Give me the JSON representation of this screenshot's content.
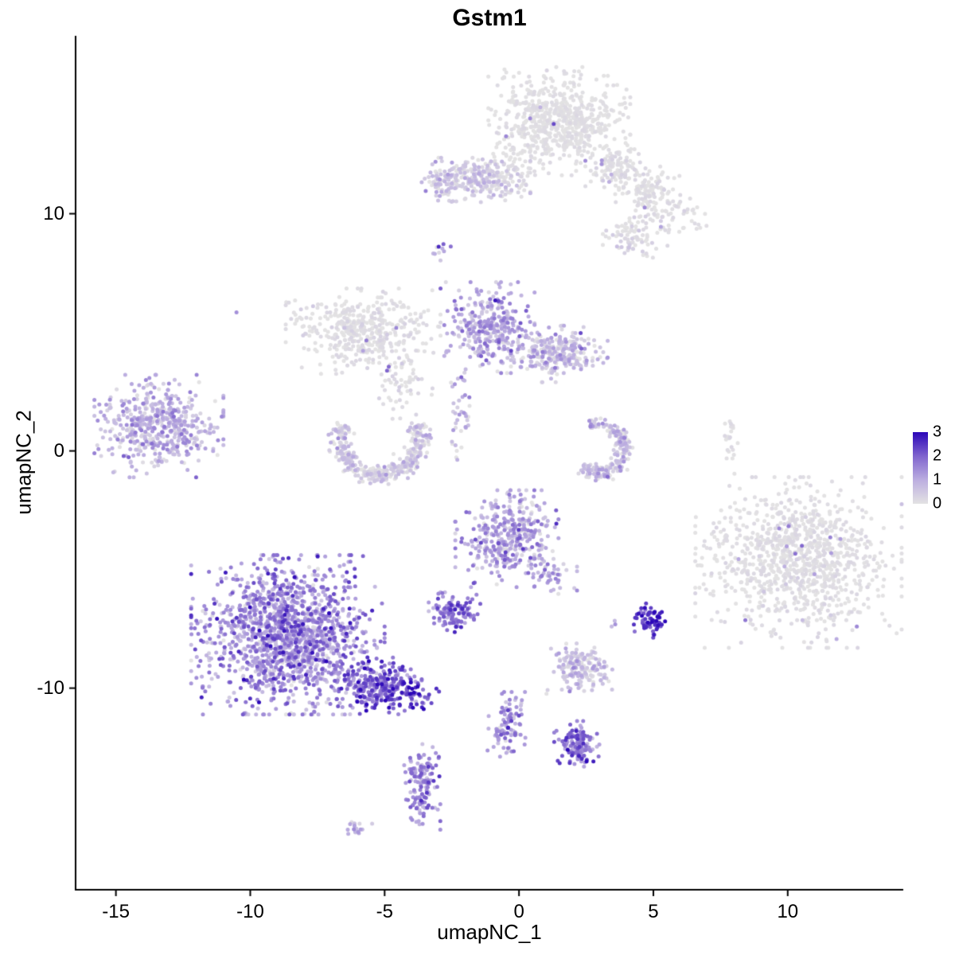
{
  "chart_data": {
    "type": "scatter",
    "title": "Gstm1",
    "xlabel": "umapNC_1",
    "ylabel": "umapNC_2",
    "xlim": [
      -16.5,
      14.3
    ],
    "ylim": [
      -18.5,
      17.5
    ],
    "xticks": [
      -15,
      -10,
      -5,
      0,
      5,
      10
    ],
    "yticks": [
      -10,
      0,
      10
    ],
    "grid": false,
    "point_radius": 2.5,
    "colors": {
      "axis": "#000000",
      "text": "#000000",
      "background": "#FFFFFF"
    },
    "gradient": [
      {
        "t": 0.0,
        "color": "#E3E2E3"
      },
      {
        "t": 0.33,
        "color": "#BCAEE0"
      },
      {
        "t": 0.66,
        "color": "#8166CE"
      },
      {
        "t": 1.0,
        "color": "#2B06B8"
      }
    ],
    "legend": {
      "values": [
        3,
        2,
        1,
        0
      ],
      "max": 3,
      "position": "right"
    },
    "clusters": [
      {
        "name": "top-main-gray",
        "cx": 1.5,
        "cy": 13.9,
        "rx": 1.1,
        "ry": 0.95,
        "n": 650,
        "expr_mean": 0.03,
        "expr_sd": 0.08,
        "out_frac": 0.012,
        "out_mean": 1.2,
        "out_sd": 0.5
      },
      {
        "name": "top-main-west",
        "cx": -0.3,
        "cy": 11.9,
        "rx": 0.5,
        "ry": 0.6,
        "n": 60,
        "expr_mean": 0.05,
        "expr_sd": 0.1
      },
      {
        "name": "top-right-a",
        "cx": 3.55,
        "cy": 11.9,
        "rx": 0.45,
        "ry": 0.45,
        "n": 110,
        "expr_mean": 0.06,
        "expr_sd": 0.12,
        "out_frac": 0.05,
        "out_mean": 0.9,
        "out_sd": 0.3
      },
      {
        "name": "top-right-b",
        "cx": 4.8,
        "cy": 11.0,
        "rx": 0.5,
        "ry": 0.5,
        "n": 110,
        "expr_mean": 0.06,
        "expr_sd": 0.12,
        "out_frac": 0.02,
        "out_mean": 1.2,
        "out_sd": 0.4
      },
      {
        "name": "top-right-c",
        "cx": 4.2,
        "cy": 9.05,
        "rx": 0.45,
        "ry": 0.4,
        "n": 80,
        "expr_mean": 0.1,
        "expr_sd": 0.2,
        "out_frac": 0.04,
        "out_mean": 1.5,
        "out_sd": 0.5
      },
      {
        "name": "top-right-d",
        "cx": 5.85,
        "cy": 9.85,
        "rx": 0.6,
        "ry": 0.5,
        "n": 50,
        "expr_mean": 0.05,
        "expr_sd": 0.1
      },
      {
        "name": "upper-mid",
        "cx": -1.5,
        "cy": 11.4,
        "rx": 0.8,
        "ry": 0.4,
        "n": 230,
        "expr_mean": 0.35,
        "expr_sd": 0.35
      },
      {
        "name": "upper-mid-west",
        "cx": -3.0,
        "cy": 11.4,
        "rx": 0.35,
        "ry": 0.4,
        "n": 50,
        "expr_mean": 0.5,
        "expr_sd": 0.45
      },
      {
        "name": "tiny-upper",
        "cx": -2.9,
        "cy": 8.5,
        "rx": 0.15,
        "ry": 0.2,
        "n": 10,
        "expr_mean": 1.1,
        "expr_sd": 0.5
      },
      {
        "name": "mid-gray",
        "cx": -5.8,
        "cy": 5.05,
        "rx": 1.2,
        "ry": 0.75,
        "n": 420,
        "expr_mean": 0.06,
        "expr_sd": 0.12,
        "out_frac": 0.015,
        "out_mean": 1.3,
        "out_sd": 0.5
      },
      {
        "name": "mid-gray-tail",
        "cx": -4.3,
        "cy": 2.85,
        "rx": 0.45,
        "ry": 0.7,
        "n": 60,
        "expr_mean": 0.1,
        "expr_sd": 0.2
      },
      {
        "name": "mid-purple",
        "cx": -1.1,
        "cy": 5.2,
        "rx": 0.7,
        "ry": 0.8,
        "n": 330,
        "expr_mean": 1.0,
        "expr_sd": 0.55
      },
      {
        "name": "mid-purple-east",
        "cx": 1.5,
        "cy": 4.1,
        "rx": 0.75,
        "ry": 0.5,
        "n": 260,
        "expr_mean": 0.55,
        "expr_sd": 0.5
      },
      {
        "name": "left-cluster",
        "cx": -13.4,
        "cy": 1.05,
        "rx": 1.0,
        "ry": 0.9,
        "n": 500,
        "expr_mean": 0.8,
        "expr_sd": 0.5
      },
      {
        "name": "crescent-left",
        "shape": "arc",
        "cx": -5.15,
        "cy": 0.5,
        "r": 1.5,
        "band": 0.35,
        "a0": 155,
        "a1": 385,
        "n": 380,
        "expr_mean": 0.35,
        "expr_sd": 0.4
      },
      {
        "name": "strand-mid",
        "cx": -2.2,
        "cy": 1.6,
        "rx": 0.2,
        "ry": 1.0,
        "n": 40,
        "expr_mean": 0.6,
        "expr_sd": 0.6
      },
      {
        "name": "crescent-right",
        "shape": "arc",
        "cx": 2.9,
        "cy": 0.1,
        "r": 1.05,
        "band": 0.3,
        "a0": -125,
        "a1": 105,
        "n": 210,
        "expr_mean": 0.5,
        "expr_sd": 0.5
      },
      {
        "name": "strand-right",
        "cx": 7.9,
        "cy": 0.3,
        "rx": 0.1,
        "ry": 0.75,
        "n": 22,
        "expr_mean": 0.05,
        "expr_sd": 0.1
      },
      {
        "name": "right-large-gray",
        "cx": 10.4,
        "cy": -4.7,
        "rx": 1.6,
        "ry": 1.5,
        "n": 1000,
        "expr_mean": 0.05,
        "expr_sd": 0.1,
        "out_frac": 0.02,
        "out_mean": 1.3,
        "out_sd": 0.6
      },
      {
        "name": "center-purple",
        "cx": -0.45,
        "cy": -3.7,
        "rx": 0.8,
        "ry": 0.85,
        "n": 380,
        "expr_mean": 1.0,
        "expr_sd": 0.55
      },
      {
        "name": "center-small-east",
        "cx": 1.2,
        "cy": -5.25,
        "rx": 0.4,
        "ry": 0.4,
        "n": 40,
        "expr_mean": 0.9,
        "expr_sd": 0.5
      },
      {
        "name": "center-dense",
        "cx": -2.4,
        "cy": -6.8,
        "rx": 0.4,
        "ry": 0.35,
        "n": 120,
        "expr_mean": 1.6,
        "expr_sd": 0.5
      },
      {
        "name": "bottom-left-main",
        "cx": -8.6,
        "cy": -7.75,
        "rx": 1.5,
        "ry": 1.4,
        "n": 1500,
        "expr_mean": 1.3,
        "expr_sd": 0.65
      },
      {
        "name": "bottom-left-tail",
        "cx": -5.3,
        "cy": -9.9,
        "rx": 0.7,
        "ry": 0.5,
        "n": 260,
        "expr_mean": 1.9,
        "expr_sd": 0.6
      },
      {
        "name": "tail-tip",
        "cx": -4.1,
        "cy": -10.25,
        "rx": 0.5,
        "ry": 0.35,
        "n": 60,
        "expr_mean": 2.3,
        "expr_sd": 0.5
      },
      {
        "name": "bottom-mid",
        "cx": 2.3,
        "cy": -9.2,
        "rx": 0.55,
        "ry": 0.45,
        "n": 170,
        "expr_mean": 0.5,
        "expr_sd": 0.45
      },
      {
        "name": "dark-small",
        "cx": 4.9,
        "cy": -7.15,
        "rx": 0.3,
        "ry": 0.3,
        "n": 65,
        "expr_mean": 2.5,
        "expr_sd": 0.45
      },
      {
        "name": "strand-bottom",
        "cx": -0.45,
        "cy": -11.6,
        "rx": 0.3,
        "ry": 0.6,
        "n": 95,
        "expr_mean": 1.1,
        "expr_sd": 0.6
      },
      {
        "name": "bottom-small-east",
        "cx": 2.15,
        "cy": -12.35,
        "rx": 0.35,
        "ry": 0.4,
        "n": 140,
        "expr_mean": 1.5,
        "expr_sd": 0.6
      },
      {
        "name": "bottom-strand",
        "cx": -3.6,
        "cy": -14.1,
        "rx": 0.28,
        "ry": 0.8,
        "n": 150,
        "expr_mean": 1.4,
        "expr_sd": 0.6
      },
      {
        "name": "bottom-tiny",
        "cx": -6.05,
        "cy": -15.85,
        "rx": 0.3,
        "ry": 0.18,
        "n": 18,
        "expr_mean": 0.7,
        "expr_sd": 0.5
      },
      {
        "name": "isolated-a",
        "cx": -10.5,
        "cy": 5.9,
        "rx": 0.05,
        "ry": 0.05,
        "n": 1,
        "expr_mean": 1.4,
        "expr_sd": 0
      },
      {
        "name": "isolated-b",
        "cx": -4.9,
        "cy": 3.5,
        "rx": 0.06,
        "ry": 0.06,
        "n": 2,
        "expr_mean": 1.8,
        "expr_sd": 0.3
      },
      {
        "name": "isolated-c",
        "cx": 3.4,
        "cy": -7.4,
        "rx": 0.1,
        "ry": 0.1,
        "n": 3,
        "expr_mean": 1.2,
        "expr_sd": 0.4
      }
    ]
  }
}
